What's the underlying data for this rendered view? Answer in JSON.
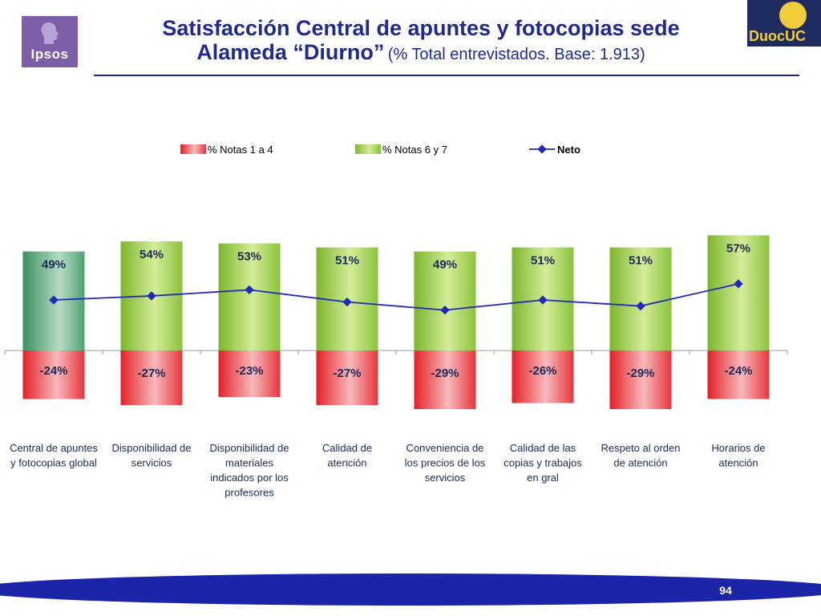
{
  "header": {
    "title_line1": "Satisfacción Central de apuntes y fotocopias sede",
    "title_line2": "Alameda “Diurno”",
    "title_subtitle": "(% Total entrevistados. Base: 1.913)"
  },
  "logos": {
    "left_brand": "Ipsos",
    "right_brand": "DuocUC"
  },
  "page_number": "94",
  "colors": {
    "positive": "#8fc43f",
    "negative": "#e8353b",
    "first_positive": "#3f9a6b",
    "net_line": "#1f2ab8"
  },
  "chart_data": {
    "type": "bar",
    "categories": [
      "Central de apuntes y fotocopias global",
      "Disponibilidad de servicios",
      "Disponibilidad de materiales indicados por los profesores",
      "Calidad de atención",
      "Conveniencia de los precios de los servicios",
      "Calidad de las copias y trabajos en gral",
      "Respeto al orden de atención",
      "Horarios de atención"
    ],
    "category_lines": [
      [
        "Central de apuntes",
        "y fotocopias global"
      ],
      [
        "Disponibilidad de",
        "servicios"
      ],
      [
        "Disponibilidad de",
        "materiales",
        "indicados por los",
        "profesores"
      ],
      [
        "Calidad de",
        "atención"
      ],
      [
        "Conveniencia de",
        "los precios de los",
        "servicios"
      ],
      [
        "Calidad de las",
        "copias y trabajos",
        "en gral"
      ],
      [
        "Respeto al orden",
        "de atención"
      ],
      [
        "Horarios de",
        "atención"
      ]
    ],
    "series": [
      {
        "name": "% Notas 1 a 4",
        "values": [
          -24,
          -27,
          -23,
          -27,
          -29,
          -26,
          -29,
          -24
        ]
      },
      {
        "name": "% Notas 6 y 7",
        "values": [
          49,
          54,
          53,
          51,
          49,
          51,
          51,
          57
        ]
      },
      {
        "name": "Neto",
        "values": [
          25,
          27,
          30,
          24,
          20,
          25,
          22,
          33
        ]
      }
    ],
    "positive_labels": [
      "49%",
      "54%",
      "53%",
      "51%",
      "49%",
      "51%",
      "51%",
      "57%"
    ],
    "negative_labels": [
      "-24%",
      "-27%",
      "-23%",
      "-27%",
      "-29%",
      "-26%",
      "-29%",
      "-24%"
    ],
    "legend": [
      "% Notas 1 a 4",
      "% Notas 6 y 7",
      "Neto"
    ],
    "legend_position": "top",
    "ylim": [
      -30,
      60
    ]
  }
}
